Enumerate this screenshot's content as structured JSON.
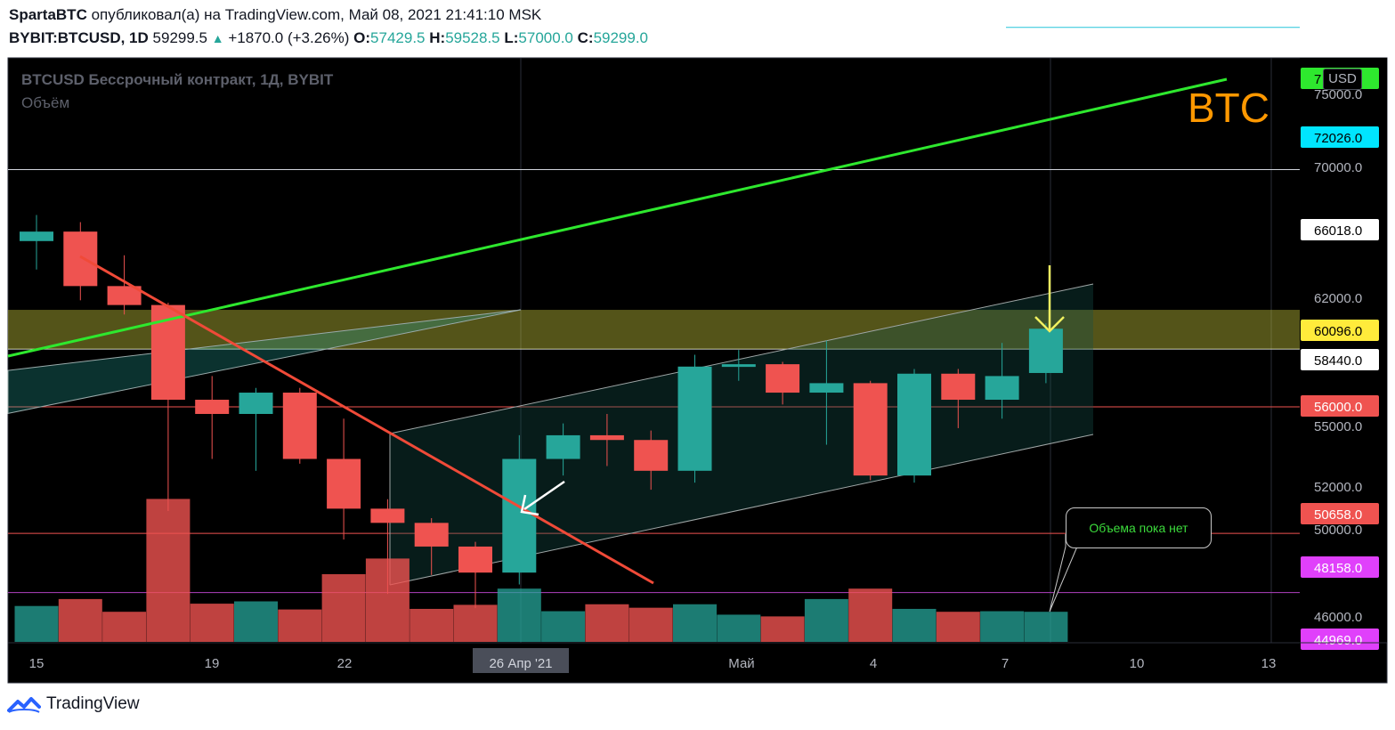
{
  "header": {
    "author": "SpartaBTC",
    "published_text": "опубликовал(а) на TradingView.com, Май 08, 2021 21:41:10 MSK",
    "symbol": "BYBIT:BTCUSD, 1D",
    "last_price": "59299.5",
    "change": "+1870.0 (+3.26%)",
    "o_label": "O:",
    "o_value": "57429.5",
    "h_label": "H:",
    "h_value": "59528.5",
    "l_label": "L:",
    "l_value": "57000.0",
    "c_label": "C:",
    "c_value": "59299.0"
  },
  "legend": {
    "series_title": "BTCUSD Бессрочный контракт, 1Д, BYBIT",
    "volume_label": "Объём"
  },
  "annotations": {
    "btc_text": "BTC",
    "volume_note": "Объема пока нет",
    "currency_button": "USD"
  },
  "footer": {
    "brand": "TradingView"
  },
  "colors": {
    "up": "#26a69a",
    "down": "#ef5350",
    "background": "#000000",
    "trendline_green": "#2ee82e",
    "trendline_red": "#f04a38",
    "zone_yellow": "#d4d45a"
  },
  "chart_data": {
    "type": "candlestick",
    "title": "BTCUSD Бессрочный контракт, 1Д, BYBIT",
    "ylim": [
      44969,
      76500
    ],
    "x_tick_labels": [
      "15",
      "19",
      "22",
      "26 Апр '21",
      "Май",
      "4",
      "7",
      "10",
      "13"
    ],
    "y_tick_labels": [
      "46000.0",
      "50000.0",
      "52000.0",
      "55000.0",
      "62000.0",
      "70000.0",
      "75000.0"
    ],
    "price_labels": [
      {
        "value": "7",
        "color": "#2ee82e",
        "text_color": "#000000"
      },
      {
        "value": "72026.0",
        "color": "#00e5ff",
        "text_color": "#000000"
      },
      {
        "value": "66018.0",
        "color": "#ffffff",
        "text_color": "#000000"
      },
      {
        "value": "60096.0",
        "color": "#ffeb3b",
        "text_color": "#000000"
      },
      {
        "value": "58440.0",
        "color": "#ffffff",
        "text_color": "#000000"
      },
      {
        "value": "56000.0",
        "color": "#ef5350",
        "text_color": "#ffffff"
      },
      {
        "value": "50658.0",
        "color": "#ef5350",
        "text_color": "#ffffff"
      },
      {
        "value": "48158.0",
        "color": "#e040fb",
        "text_color": "#ffffff"
      },
      {
        "value": "44969.0",
        "color": "#e040fb",
        "text_color": "#ffffff"
      }
    ],
    "candles": [
      {
        "o": 63000,
        "h": 64100,
        "l": 61800,
        "c": 63400
      },
      {
        "o": 63400,
        "h": 63800,
        "l": 60500,
        "c": 61100
      },
      {
        "o": 61100,
        "h": 62400,
        "l": 59900,
        "c": 60300
      },
      {
        "o": 60300,
        "h": 60400,
        "l": 51600,
        "c": 56300
      },
      {
        "o": 56300,
        "h": 57300,
        "l": 53800,
        "c": 55700
      },
      {
        "o": 55700,
        "h": 56800,
        "l": 53300,
        "c": 56600
      },
      {
        "o": 56600,
        "h": 56800,
        "l": 53600,
        "c": 53800
      },
      {
        "o": 53800,
        "h": 55500,
        "l": 50400,
        "c": 51700
      },
      {
        "o": 51700,
        "h": 52100,
        "l": 48100,
        "c": 51100
      },
      {
        "o": 51100,
        "h": 51300,
        "l": 48900,
        "c": 50100
      },
      {
        "o": 50100,
        "h": 50300,
        "l": 47500,
        "c": 49000
      },
      {
        "o": 49000,
        "h": 54800,
        "l": 48500,
        "c": 53800
      },
      {
        "o": 53800,
        "h": 55300,
        "l": 53100,
        "c": 54800
      },
      {
        "o": 54800,
        "h": 55700,
        "l": 53500,
        "c": 54600
      },
      {
        "o": 54600,
        "h": 55000,
        "l": 52500,
        "c": 53300
      },
      {
        "o": 53300,
        "h": 58200,
        "l": 52800,
        "c": 57700
      },
      {
        "o": 57700,
        "h": 58400,
        "l": 57100,
        "c": 57800
      },
      {
        "o": 57800,
        "h": 57900,
        "l": 56100,
        "c": 56600
      },
      {
        "o": 56600,
        "h": 58800,
        "l": 54400,
        "c": 57000
      },
      {
        "o": 57000,
        "h": 57100,
        "l": 52900,
        "c": 53100
      },
      {
        "o": 53100,
        "h": 57600,
        "l": 52800,
        "c": 57400
      },
      {
        "o": 57400,
        "h": 57600,
        "l": 55100,
        "c": 56300
      },
      {
        "o": 56300,
        "h": 58700,
        "l": 55500,
        "c": 57300
      },
      {
        "o": 57429.5,
        "h": 59528.5,
        "l": 57000,
        "c": 59299
      }
    ],
    "volume_relative": [
      0.62,
      0.74,
      0.52,
      2.47,
      0.66,
      0.7,
      0.56,
      1.17,
      1.44,
      0.57,
      0.64,
      0.92,
      0.53,
      0.65,
      0.59,
      0.65,
      0.47,
      0.44,
      0.74,
      0.92,
      0.57,
      0.52,
      0.53,
      0.52
    ],
    "grid": true
  }
}
